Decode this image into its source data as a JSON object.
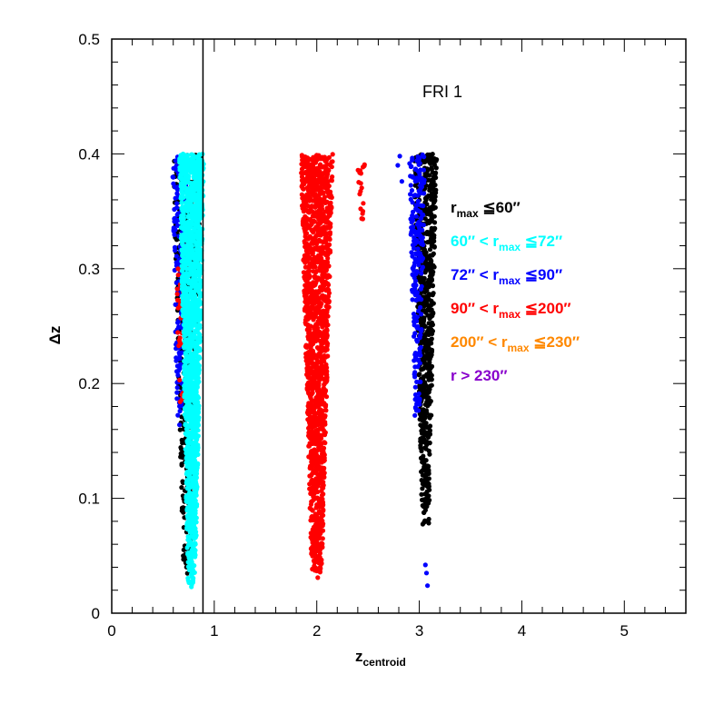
{
  "chart_data": {
    "type": "scatter",
    "title": "FRI 1",
    "xlabel": "z",
    "xlabel_sub": "centroid",
    "ylabel": "Δz",
    "xlim": [
      0,
      5.6
    ],
    "ylim": [
      0,
      0.5
    ],
    "x_ticks": [
      0,
      1,
      2,
      3,
      4,
      5
    ],
    "x_tick_labels": [
      "0",
      "1",
      "2",
      "3",
      "4",
      "5"
    ],
    "y_ticks": [
      0,
      0.1,
      0.2,
      0.3,
      0.4,
      0.5
    ],
    "y_tick_labels": [
      "0",
      "0.1",
      "0.2",
      "0.3",
      "0.4",
      "0.5"
    ],
    "vertical_line_x": 0.89,
    "grid": false,
    "legend_position": "right",
    "legend": [
      {
        "pre": "r",
        "sub": "max",
        "post": " ≦60″",
        "color": "#000000"
      },
      {
        "pre": "60″ < r",
        "sub": "max",
        "post": " ≦72″",
        "color": "#00ffff"
      },
      {
        "pre": "72″ < r",
        "sub": "max",
        "post": " ≦90″",
        "color": "#0000ff"
      },
      {
        "pre": "90″ < r",
        "sub": "max",
        "post": " ≦200″",
        "color": "#ff0000"
      },
      {
        "pre": "200″ < r",
        "sub": "max",
        "post": " ≦230″",
        "color": "#ff8800"
      },
      {
        "pre": "r > 230″",
        "sub": "",
        "post": "",
        "color": "#8800cc"
      }
    ],
    "clusters": [
      {
        "color": "#000000",
        "x_center": 0.74,
        "half_width": 0.14,
        "y_min": 0.03,
        "y_max": 0.4,
        "n": 500
      },
      {
        "color": "#0000ff",
        "x_center": 0.66,
        "half_width": 0.07,
        "y_min": 0.16,
        "y_max": 0.4,
        "n": 160
      },
      {
        "color": "#ff0000",
        "x_center": 0.68,
        "half_width": 0.05,
        "y_min": 0.16,
        "y_max": 0.3,
        "n": 30
      },
      {
        "color": "#00ffff",
        "x_center": 0.78,
        "half_width": 0.12,
        "y_min": 0.022,
        "y_max": 0.4,
        "n": 1600
      },
      {
        "color": "#ff0000",
        "x_center": 2.0,
        "half_width": 0.16,
        "y_min": 0.03,
        "y_max": 0.4,
        "n": 1500
      },
      {
        "color": "#ff0000",
        "x_center": 2.43,
        "half_width": 0.04,
        "y_min": 0.32,
        "y_max": 0.4,
        "n": 18
      },
      {
        "color": "#000000",
        "x_center": 3.06,
        "half_width": 0.11,
        "y_min": 0.075,
        "y_max": 0.4,
        "n": 700
      },
      {
        "color": "#0000ff",
        "x_center": 2.98,
        "half_width": 0.08,
        "y_min": 0.17,
        "y_max": 0.4,
        "n": 220
      }
    ],
    "extra_points": [
      {
        "color": "#0000ff",
        "x": 3.06,
        "y": 0.042
      },
      {
        "color": "#0000ff",
        "x": 3.07,
        "y": 0.035
      },
      {
        "color": "#0000ff",
        "x": 3.08,
        "y": 0.024
      },
      {
        "color": "#0000ff",
        "x": 2.81,
        "y": 0.398
      },
      {
        "color": "#0000ff",
        "x": 2.83,
        "y": 0.376
      },
      {
        "color": "#0000ff",
        "x": 2.79,
        "y": 0.39
      }
    ]
  }
}
